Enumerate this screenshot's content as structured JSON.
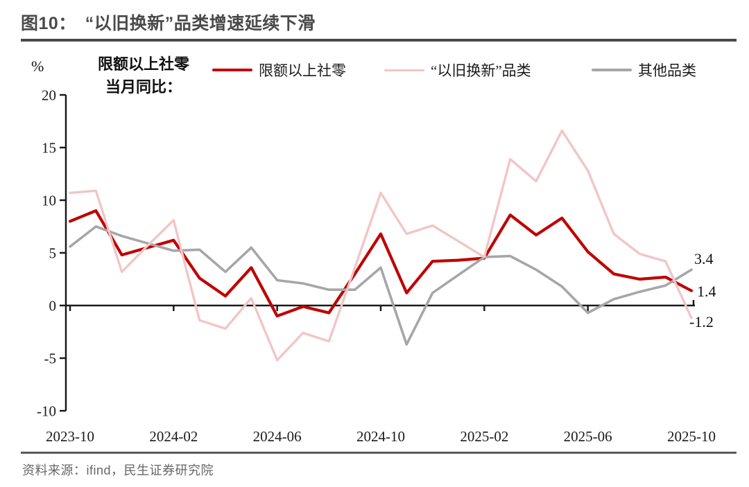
{
  "title": "图10：　“以旧换新”品类增速延续下滑",
  "axis_note": {
    "line1": "限额以上社零",
    "line2": "当月同比："
  },
  "y_unit": "%",
  "legend": [
    {
      "label": "限额以上社零",
      "color": "#C00000",
      "thickness": 4
    },
    {
      "label": "“以旧换新”品类",
      "color": "#F2C5C6",
      "thickness": 3
    },
    {
      "label": "其他品类",
      "color": "#A6A6A6",
      "thickness": 4
    }
  ],
  "source": "资料来源：ifind，民生证券研究院",
  "chart_data": {
    "type": "line",
    "title": "图10：“以旧换新”品类增速延续下滑",
    "ylabel": "%",
    "ylim": [
      -10,
      20
    ],
    "yticks": [
      20,
      15,
      10,
      5,
      0,
      -5,
      -10
    ],
    "xtick_labels": [
      "2023-10",
      "2024-02",
      "2024-06",
      "2024-10",
      "2025-02",
      "2025-06",
      "2025-10"
    ],
    "x_months": [
      "2023-10",
      "2023-11",
      "2023-12",
      "2024-01",
      "2024-02",
      "2024-03",
      "2024-04",
      "2024-05",
      "2024-06",
      "2024-07",
      "2024-08",
      "2024-09",
      "2024-10",
      "2024-11",
      "2024-12",
      "2025-01",
      "2025-02",
      "2025-03",
      "2025-04",
      "2025-05",
      "2025-06",
      "2025-07",
      "2025-08",
      "2025-09",
      "2025-10"
    ],
    "series": [
      {
        "name": "限额以上社零",
        "color": "#C00000",
        "values": [
          8.0,
          9.0,
          4.8,
          5.5,
          6.2,
          2.6,
          0.9,
          3.6,
          -1.0,
          -0.1,
          -0.7,
          3.0,
          6.8,
          1.2,
          4.2,
          4.3,
          4.5,
          8.6,
          6.7,
          8.3,
          5.1,
          3.0,
          2.5,
          2.7,
          1.4
        ]
      },
      {
        "name": "“以旧换新”品类",
        "color": "#F2C5C6",
        "values": [
          10.7,
          10.9,
          3.2,
          5.7,
          8.1,
          -1.4,
          -2.2,
          0.7,
          -5.2,
          -2.6,
          -3.4,
          3.6,
          10.7,
          6.8,
          7.6,
          6.1,
          4.6,
          13.9,
          11.8,
          16.6,
          12.8,
          6.8,
          4.9,
          4.2,
          -1.2
        ]
      },
      {
        "name": "其他品类",
        "color": "#A6A6A6",
        "values": [
          5.6,
          7.5,
          6.6,
          5.9,
          5.2,
          5.3,
          3.2,
          5.5,
          2.4,
          2.1,
          1.5,
          1.5,
          3.6,
          -3.7,
          1.2,
          2.9,
          4.6,
          4.7,
          3.4,
          1.8,
          -0.7,
          0.6,
          1.3,
          1.9,
          3.4
        ]
      }
    ],
    "end_labels": [
      "3.4",
      "1.4",
      "-1.2"
    ],
    "legend_position": "top",
    "grid": false
  }
}
